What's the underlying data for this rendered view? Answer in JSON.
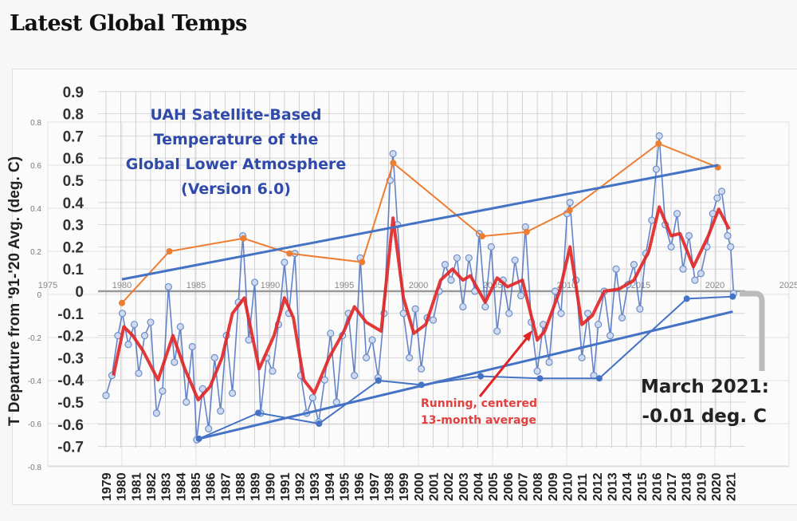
{
  "page": {
    "title": "Latest Global Temps"
  },
  "chart_data": [
    {
      "type": "line",
      "title": "UAH Satellite-Based Temperature of the Global Lower Atmosphere (Version 6.0)",
      "title_lines": [
        "UAH Satellite-Based",
        "Temperature of the",
        "Global Lower Atmosphere",
        "(Version 6.0)"
      ],
      "ylabel": "T Departure from '91-'20 Avg. (deg. C)",
      "ylim": [
        -0.7,
        0.9
      ],
      "yticks": [
        "0.9",
        "0.8",
        "0.7",
        "0.6",
        "0.5",
        "0.4",
        "0.3",
        "0.2",
        "0.1",
        "0",
        "-0.1",
        "-0.2",
        "-0.3",
        "-0.4",
        "-0.5",
        "-0.6",
        "-0.7"
      ],
      "xticks": [
        "1979",
        "1980",
        "1981",
        "1982",
        "1983",
        "1984",
        "1985",
        "1986",
        "1987",
        "1988",
        "1989",
        "1990",
        "1991",
        "1992",
        "1993",
        "1994",
        "1995",
        "1996",
        "1997",
        "1998",
        "1999",
        "2000",
        "2001",
        "2002",
        "2003",
        "2004",
        "2005",
        "2006",
        "2007",
        "2008",
        "2009",
        "2010",
        "2011",
        "2012",
        "2013",
        "2014",
        "2015",
        "2016",
        "2017",
        "2018",
        "2019",
        "2020",
        "2021"
      ],
      "grid": true,
      "series": [
        {
          "kind": "monthly",
          "color": "#4a6fc0",
          "x": [
            1979.0,
            1979.4,
            1979.8,
            1980.1,
            1980.5,
            1980.9,
            1981.2,
            1981.6,
            1982.0,
            1982.4,
            1982.8,
            1983.2,
            1983.6,
            1984.0,
            1984.4,
            1984.8,
            1985.1,
            1985.5,
            1985.9,
            1986.3,
            1986.7,
            1987.1,
            1987.5,
            1987.9,
            1988.2,
            1988.6,
            1989.0,
            1989.4,
            1989.8,
            1990.2,
            1990.6,
            1991.0,
            1991.3,
            1991.7,
            1992.1,
            1992.5,
            1992.9,
            1993.3,
            1993.7,
            1994.1,
            1994.5,
            1994.9,
            1995.3,
            1995.7,
            1996.1,
            1996.5,
            1996.9,
            1997.3,
            1997.7,
            1998.1,
            1998.3,
            1998.6,
            1999.0,
            1999.4,
            1999.8,
            2000.2,
            2000.6,
            2001.0,
            2001.4,
            2001.8,
            2002.2,
            2002.6,
            2003.0,
            2003.4,
            2003.8,
            2004.1,
            2004.5,
            2004.9,
            2005.3,
            2005.7,
            2006.1,
            2006.5,
            2006.9,
            2007.2,
            2007.6,
            2008.0,
            2008.4,
            2008.8,
            2009.2,
            2009.6,
            2010.0,
            2010.2,
            2010.6,
            2011.0,
            2011.4,
            2011.8,
            2012.1,
            2012.5,
            2012.9,
            2013.3,
            2013.7,
            2014.1,
            2014.5,
            2014.9,
            2015.3,
            2015.7,
            2016.0,
            2016.2,
            2016.6,
            2017.0,
            2017.4,
            2017.8,
            2018.2,
            2018.6,
            2019.0,
            2019.4,
            2019.8,
            2020.1,
            2020.4,
            2020.8,
            2021.0,
            2021.2
          ],
          "y": [
            -0.47,
            -0.38,
            -0.2,
            -0.1,
            -0.24,
            -0.15,
            -0.37,
            -0.2,
            -0.14,
            -0.55,
            -0.45,
            0.02,
            -0.32,
            -0.16,
            -0.5,
            -0.25,
            -0.67,
            -0.44,
            -0.62,
            -0.3,
            -0.54,
            -0.2,
            -0.46,
            -0.05,
            0.25,
            -0.22,
            0.04,
            -0.55,
            -0.3,
            -0.36,
            -0.15,
            0.13,
            -0.1,
            0.17,
            -0.38,
            -0.55,
            -0.48,
            -0.59,
            -0.4,
            -0.19,
            -0.5,
            -0.2,
            -0.1,
            -0.38,
            0.15,
            -0.3,
            -0.22,
            -0.39,
            -0.1,
            0.5,
            0.62,
            0.3,
            -0.1,
            -0.3,
            -0.08,
            -0.35,
            -0.12,
            -0.13,
            0.0,
            0.12,
            0.05,
            0.15,
            -0.07,
            0.15,
            0.0,
            0.26,
            -0.07,
            0.2,
            -0.18,
            0.05,
            -0.1,
            0.14,
            -0.02,
            0.29,
            -0.14,
            -0.36,
            -0.15,
            -0.32,
            0.0,
            -0.1,
            0.35,
            0.4,
            0.05,
            -0.3,
            -0.1,
            -0.38,
            -0.15,
            0.0,
            -0.2,
            0.1,
            -0.12,
            0.03,
            0.12,
            -0.08,
            0.17,
            0.32,
            0.55,
            0.7,
            0.3,
            0.2,
            0.35,
            0.1,
            0.25,
            0.05,
            0.08,
            0.2,
            0.35,
            0.42,
            0.45,
            0.25,
            0.2,
            -0.01
          ]
        },
        {
          "kind": "running_13_month_average",
          "color": "#e02424",
          "x": [
            1979.5,
            1980.2,
            1980.8,
            1981.5,
            1982.5,
            1983.5,
            1984.3,
            1985.2,
            1986.0,
            1986.8,
            1987.5,
            1988.3,
            1989.3,
            1990.3,
            1991.0,
            1991.6,
            1992.3,
            1993.0,
            1994.0,
            1995.0,
            1995.7,
            1996.5,
            1997.5,
            1998.3,
            1999.0,
            1999.7,
            2000.5,
            2001.5,
            2002.3,
            2003.0,
            2003.5,
            2004.5,
            2005.3,
            2006.0,
            2007.0,
            2008.0,
            2008.5,
            2009.5,
            2010.2,
            2011.0,
            2011.7,
            2012.5,
            2013.5,
            2014.5,
            2015.5,
            2016.2,
            2017.0,
            2017.6,
            2018.5,
            2019.5,
            2020.2,
            2020.9
          ],
          "y": [
            -0.38,
            -0.16,
            -0.2,
            -0.27,
            -0.4,
            -0.2,
            -0.35,
            -0.49,
            -0.43,
            -0.3,
            -0.1,
            -0.03,
            -0.35,
            -0.2,
            -0.03,
            -0.12,
            -0.4,
            -0.46,
            -0.3,
            -0.18,
            -0.07,
            -0.14,
            -0.18,
            0.33,
            -0.03,
            -0.19,
            -0.15,
            0.05,
            0.1,
            0.05,
            0.07,
            -0.05,
            0.06,
            0.02,
            0.05,
            -0.22,
            -0.18,
            0.0,
            0.2,
            -0.15,
            -0.11,
            0.0,
            0.01,
            0.05,
            0.18,
            0.38,
            0.25,
            0.26,
            0.11,
            0.25,
            0.37,
            0.28
          ]
        }
      ],
      "annotations": {
        "running_label_lines": [
          "Running, centered",
          "13-month average"
        ],
        "latest_lines": [
          "March 2021:",
          "-0.01 deg. C"
        ]
      }
    },
    {
      "type": "line",
      "overlay": true,
      "ylim": [
        -0.8,
        0.8
      ],
      "yticks": [
        "0.8",
        "0.6",
        "0.4",
        "0.2",
        "0",
        "-0.2",
        "-0.4",
        "-0.6",
        "-0.8"
      ],
      "xlim": [
        1975,
        2025
      ],
      "xticks": [
        "1975",
        "1980",
        "1985",
        "1990",
        "1995",
        "2000",
        "2005",
        "2010",
        "2015",
        "2020",
        "2025"
      ],
      "series": [
        {
          "kind": "peaks",
          "color": "#ed7d31",
          "x": [
            1980.0,
            1983.2,
            1988.2,
            1991.3,
            1996.2,
            1998.3,
            2004.3,
            2007.3,
            2010.2,
            2016.2,
            2020.2
          ],
          "y": [
            -0.04,
            0.2,
            0.26,
            0.19,
            0.15,
            0.61,
            0.27,
            0.29,
            0.39,
            0.7,
            0.59
          ]
        },
        {
          "kind": "troughs",
          "color": "#4472c4",
          "x": [
            1985.2,
            1989.2,
            1993.3,
            1997.3,
            2000.2,
            2004.2,
            2008.2,
            2012.2,
            2018.1,
            2021.2
          ],
          "y": [
            -0.67,
            -0.55,
            -0.6,
            -0.4,
            -0.42,
            -0.38,
            -0.39,
            -0.39,
            -0.02,
            -0.01
          ]
        },
        {
          "kind": "upper-trend",
          "color": "#4472c4",
          "x": [
            1980.0,
            2020.2
          ],
          "y": [
            0.07,
            0.6
          ]
        },
        {
          "kind": "lower-trend",
          "color": "#4472c4",
          "x": [
            1985.2,
            2021.2
          ],
          "y": [
            -0.67,
            -0.08
          ]
        }
      ]
    }
  ]
}
